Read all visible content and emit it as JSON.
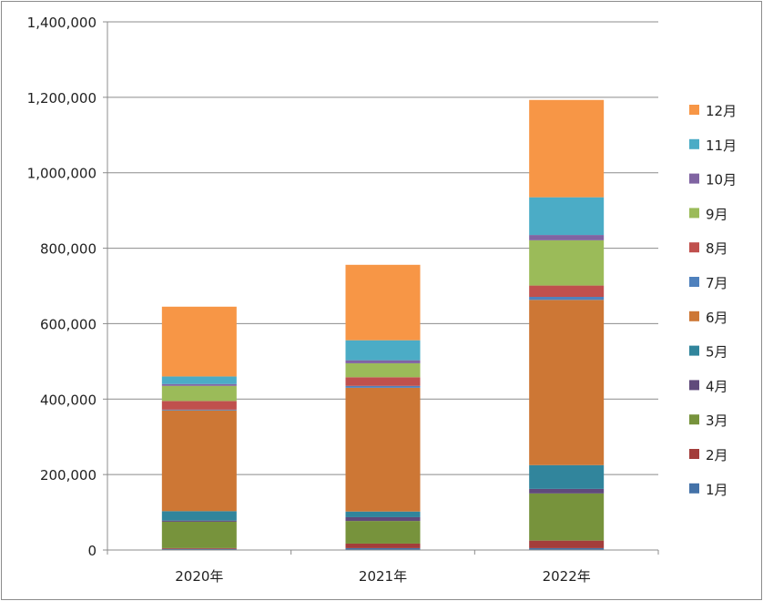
{
  "chart_data": {
    "type": "bar",
    "stacked": true,
    "categories": [
      "2020年",
      "2021年",
      "2022年"
    ],
    "ylim": [
      0,
      1400000
    ],
    "y_ticks": [
      "0",
      "200,000",
      "400,000",
      "600,000",
      "800,000",
      "1,000,000",
      "1,200,000",
      "1,400,000"
    ],
    "grid": true,
    "legend_position": "right",
    "series": [
      {
        "name": "1月",
        "color": "#4472a8",
        "values": [
          3000,
          5000,
          5000
        ]
      },
      {
        "name": "2月",
        "color": "#a33d3b",
        "values": [
          2000,
          12000,
          20000
        ]
      },
      {
        "name": "3月",
        "color": "#77933c",
        "values": [
          70000,
          60000,
          125000
        ]
      },
      {
        "name": "4月",
        "color": "#604a7b",
        "values": [
          3000,
          10000,
          12000
        ]
      },
      {
        "name": "5月",
        "color": "#31859c",
        "values": [
          25000,
          15000,
          63000
        ]
      },
      {
        "name": "6月",
        "color": "#cd7735",
        "values": [
          267000,
          328000,
          438000
        ]
      },
      {
        "name": "7月",
        "color": "#4f81bd",
        "values": [
          2000,
          5000,
          8000
        ]
      },
      {
        "name": "8月",
        "color": "#c0504d",
        "values": [
          23000,
          23000,
          30000
        ]
      },
      {
        "name": "9月",
        "color": "#9bbb59",
        "values": [
          40000,
          37000,
          120000
        ]
      },
      {
        "name": "10月",
        "color": "#8064a2",
        "values": [
          5000,
          8000,
          14000
        ]
      },
      {
        "name": "11月",
        "color": "#4bacc6",
        "values": [
          20000,
          53000,
          100000
        ]
      },
      {
        "name": "12月",
        "color": "#f79646",
        "values": [
          185000,
          200000,
          258000
        ]
      }
    ]
  }
}
